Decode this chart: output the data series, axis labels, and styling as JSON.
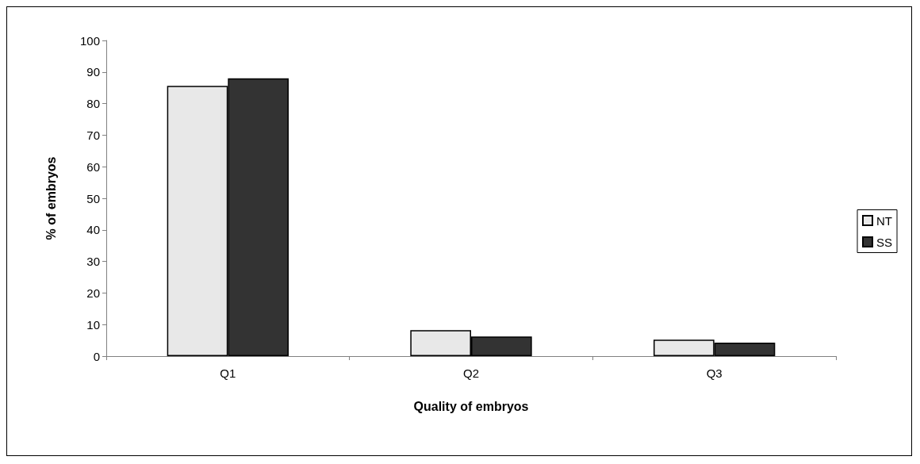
{
  "chart_data": {
    "type": "bar",
    "xlabel": "Quality of embryos",
    "ylabel": "% of embryos",
    "categories": [
      "Q1",
      "Q2",
      "Q3"
    ],
    "series": [
      {
        "name": "NT",
        "color": "#e8e8e8",
        "values": [
          85.6,
          8.2,
          5.2
        ]
      },
      {
        "name": "SS",
        "color": "#333333",
        "values": [
          88,
          6.2,
          4.3
        ]
      }
    ],
    "ylim": [
      0,
      100
    ],
    "yticks": [
      0,
      10,
      20,
      30,
      40,
      50,
      60,
      70,
      80,
      90,
      100
    ],
    "grid": false,
    "legend": "right"
  }
}
